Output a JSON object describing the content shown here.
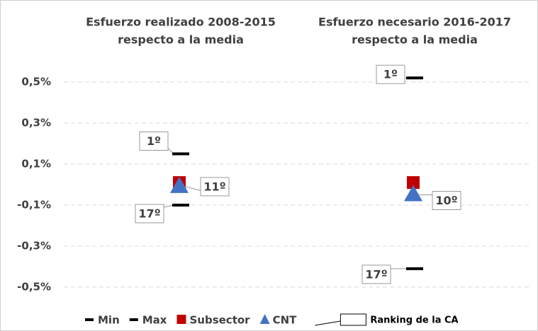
{
  "chart_data": {
    "type": "dot",
    "categories": [
      [
        "Esfuerzo realizado 2008-2015",
        "respecto a la media"
      ],
      [
        "Esfuerzo necesario 2016-2017",
        "respecto a la media"
      ]
    ],
    "series": [
      {
        "name": "Min",
        "color": "#000000",
        "marker": "dash",
        "values": [
          -0.1,
          -0.41
        ],
        "rankings": [
          "17º",
          "17º"
        ]
      },
      {
        "name": "Max",
        "color": "#000000",
        "marker": "dash",
        "values": [
          0.15,
          0.52
        ],
        "rankings": [
          "1º",
          "1º"
        ]
      },
      {
        "name": "Subsector",
        "color": "#c00000",
        "marker": "square",
        "values": [
          0.01,
          0.01
        ]
      },
      {
        "name": "CNT",
        "color": "#4472c4",
        "marker": "triangle",
        "values": [
          -0.01,
          -0.05
        ],
        "rankings": [
          "11º",
          "10º"
        ]
      }
    ],
    "ranking_legend": "Ranking de la CA",
    "ylim": [
      -0.6,
      0.6
    ],
    "yticks": [
      {
        "value": 0.5,
        "label": "0,5%"
      },
      {
        "value": 0.3,
        "label": "0,3%"
      },
      {
        "value": 0.1,
        "label": "0,1%"
      },
      {
        "value": -0.1,
        "label": "-0,1%"
      },
      {
        "value": -0.3,
        "label": "-0,3%"
      },
      {
        "value": -0.5,
        "label": "-0,5%"
      }
    ],
    "grid": true,
    "legend": "bottom"
  }
}
